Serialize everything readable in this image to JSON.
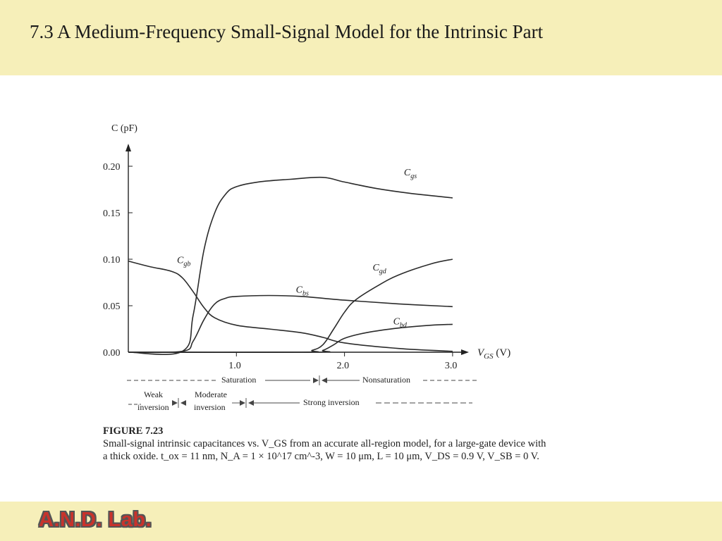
{
  "slide": {
    "title": "7.3 A Medium-Frequency Small-Signal Model for the Intrinsic Part",
    "logo": "A.N.D. Lab."
  },
  "figure": {
    "number": "FIGURE 7.23",
    "caption_line1": "Small-signal intrinsic capacitances vs. V_GS from an accurate all-region model, for a large-gate device with",
    "caption_line2": "a thick oxide. t_ox = 11 nm, N_A = 1 × 10^17 cm^-3, W = 10 μm, L = 10 μm, V_DS = 0.9 V, V_SB = 0 V."
  },
  "regions": {
    "saturation": "Saturation",
    "nonsaturation": "Nonsaturation",
    "weak": "Weak",
    "weak2": "inversion",
    "moderate": "Moderate",
    "moderate2": "inversion",
    "strong": "Strong inversion"
  },
  "chart_data": {
    "type": "line",
    "ylabel": "C (pF)",
    "xlabel": "V_GS (V)",
    "xlim": [
      0,
      3.0
    ],
    "ylim": [
      0,
      0.2
    ],
    "xticks": [
      "1.0",
      "2.0",
      "3.0"
    ],
    "yticks": [
      "0.00",
      "0.05",
      "0.10",
      "0.15",
      "0.20"
    ],
    "series": [
      {
        "name": "Cgs",
        "label": "C",
        "sub": "gs",
        "x": [
          0,
          0.5,
          0.6,
          0.7,
          0.8,
          0.9,
          1.0,
          1.2,
          1.5,
          1.8,
          2.0,
          2.3,
          2.6,
          3.0
        ],
        "y": [
          0,
          0.001,
          0.04,
          0.11,
          0.15,
          0.17,
          0.178,
          0.183,
          0.186,
          0.188,
          0.183,
          0.176,
          0.171,
          0.166
        ]
      },
      {
        "name": "Cgb",
        "label": "C",
        "sub": "gb",
        "x": [
          0,
          0.2,
          0.4,
          0.5,
          0.6,
          0.7,
          0.8,
          1.0,
          1.3,
          1.6,
          1.8,
          2.0,
          2.5,
          3.0
        ],
        "y": [
          0.098,
          0.092,
          0.087,
          0.08,
          0.065,
          0.048,
          0.037,
          0.029,
          0.025,
          0.021,
          0.016,
          0.01,
          0.004,
          0.001
        ]
      },
      {
        "name": "Cbs",
        "label": "C",
        "sub": "bs",
        "x": [
          0,
          0.5,
          0.6,
          0.7,
          0.8,
          0.9,
          1.0,
          1.3,
          1.6,
          2.0,
          2.5,
          3.0
        ],
        "y": [
          0,
          0.001,
          0.012,
          0.035,
          0.052,
          0.058,
          0.06,
          0.061,
          0.06,
          0.056,
          0.052,
          0.049
        ]
      },
      {
        "name": "Cgd",
        "label": "C",
        "sub": "gd",
        "x": [
          0,
          1.6,
          1.7,
          1.8,
          1.9,
          2.0,
          2.1,
          2.3,
          2.5,
          2.8,
          3.0
        ],
        "y": [
          0,
          0,
          0.002,
          0.008,
          0.025,
          0.043,
          0.056,
          0.071,
          0.083,
          0.095,
          0.1
        ]
      },
      {
        "name": "Cbd",
        "label": "C",
        "sub": "bd",
        "x": [
          0,
          1.7,
          1.8,
          1.9,
          2.0,
          2.2,
          2.5,
          2.8,
          3.0
        ],
        "y": [
          0,
          0,
          0.002,
          0.008,
          0.015,
          0.021,
          0.026,
          0.029,
          0.03
        ]
      }
    ]
  }
}
